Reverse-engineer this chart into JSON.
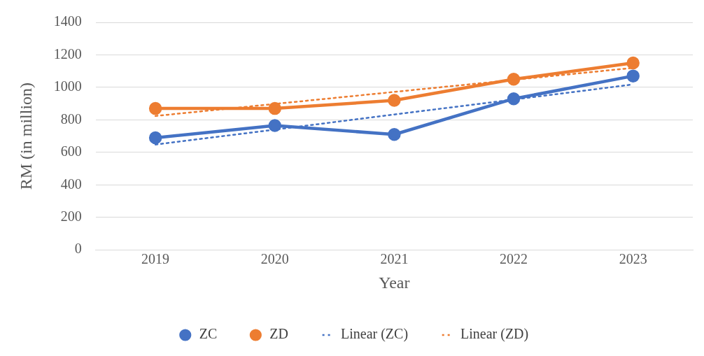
{
  "chart_data": {
    "type": "line",
    "xlabel": "Year",
    "ylabel": "RM (in million)",
    "categories": [
      "2019",
      "2020",
      "2021",
      "2022",
      "2023"
    ],
    "series": [
      {
        "name": "ZC",
        "color": "#4472c4",
        "values": [
          690,
          765,
          710,
          930,
          1070
        ],
        "marker": "circle",
        "line_style": "solid"
      },
      {
        "name": "ZD",
        "color": "#ed7d31",
        "values": [
          870,
          870,
          920,
          1050,
          1150
        ],
        "marker": "circle",
        "line_style": "solid"
      },
      {
        "name": "Linear (ZC)",
        "color": "#4472c4",
        "values": [
          648,
          740,
          833,
          925,
          1018
        ],
        "marker": "none",
        "line_style": "dotted"
      },
      {
        "name": "Linear (ZD)",
        "color": "#ed7d31",
        "values": [
          824,
          898,
          972,
          1046,
          1120
        ],
        "marker": "none",
        "line_style": "dotted"
      }
    ],
    "ylim": [
      0,
      1400
    ],
    "yticks": [
      0,
      200,
      400,
      600,
      800,
      1000,
      1200,
      1400
    ],
    "grid": "y",
    "legend": "bottom"
  }
}
